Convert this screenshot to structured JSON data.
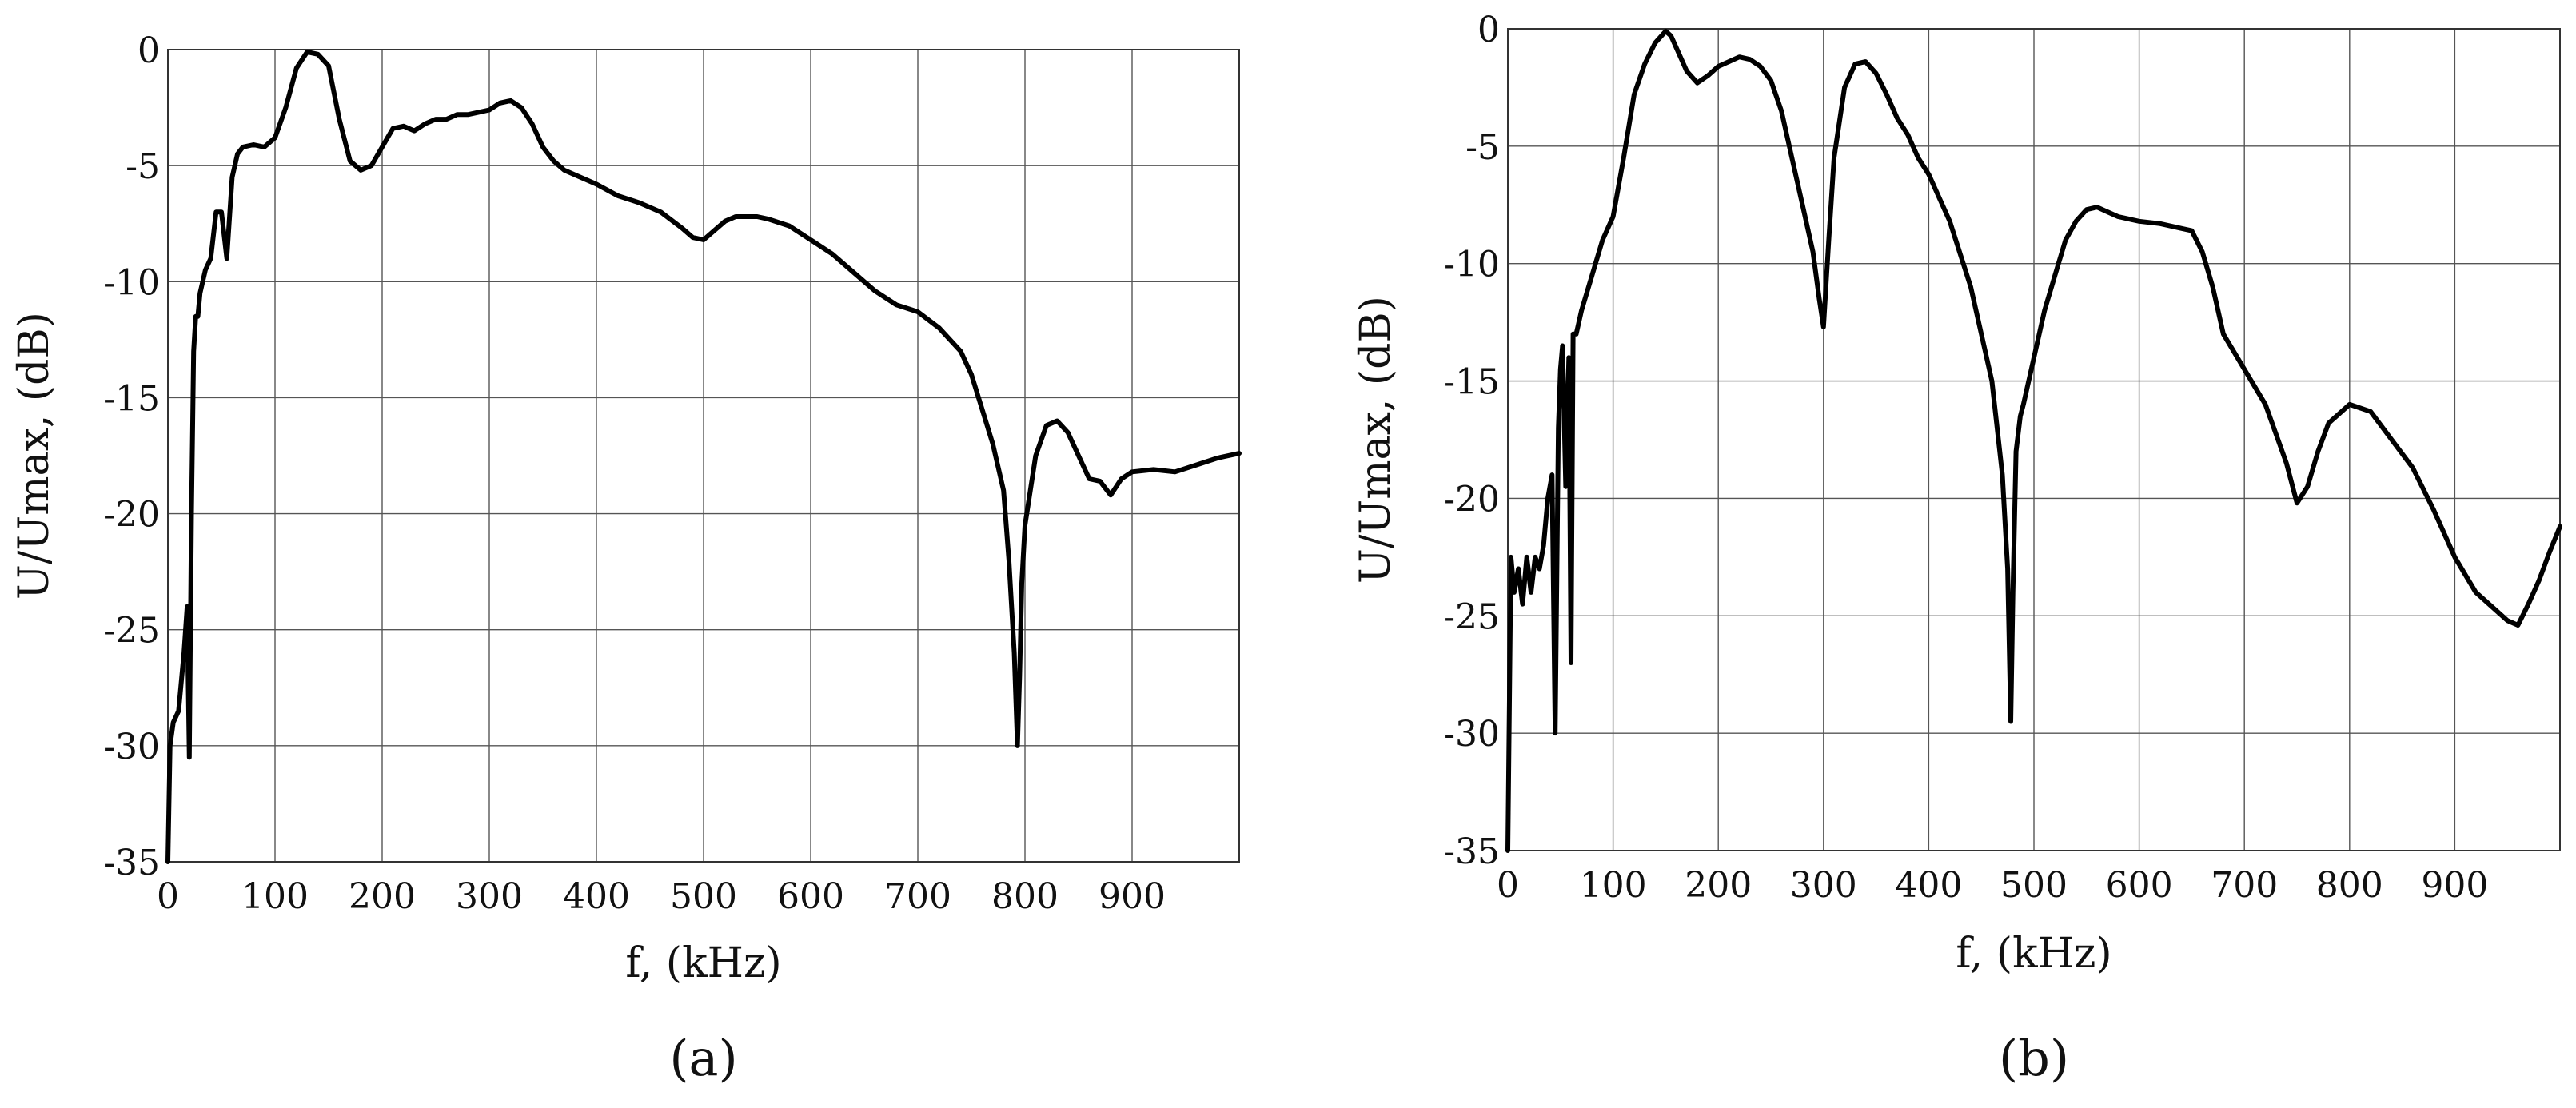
{
  "chart_data": [
    {
      "type": "line",
      "panel_label": "(a)",
      "xlabel": "f, (kHz)",
      "ylabel": "U/Umax, (dB)",
      "xlim": [
        0,
        1000
      ],
      "ylim": [
        -35,
        0
      ],
      "xticks": [
        0,
        100,
        200,
        300,
        400,
        500,
        600,
        700,
        800,
        900
      ],
      "yticks": [
        0,
        -5,
        -10,
        -15,
        -20,
        -25,
        -30,
        -35
      ],
      "tick_labels_x": [
        "0",
        "100",
        "200",
        "300",
        "400",
        "500",
        "600",
        "700",
        "800",
        "900"
      ],
      "tick_labels_y": [
        "0",
        "-5",
        "-10",
        "-15",
        "-20",
        "-25",
        "-30",
        "-35"
      ],
      "grid": true,
      "series": [
        {
          "x": [
            0,
            2,
            5,
            10,
            15,
            18,
            20,
            22,
            24,
            26,
            28,
            30,
            35,
            40,
            45,
            50,
            55,
            60,
            65,
            70,
            80,
            90,
            100,
            110,
            120,
            130,
            140,
            150,
            160,
            170,
            180,
            190,
            200,
            210,
            220,
            230,
            240,
            250,
            260,
            270,
            280,
            290,
            300,
            310,
            320,
            330,
            340,
            350,
            360,
            370,
            380,
            400,
            420,
            440,
            460,
            480,
            490,
            500,
            510,
            520,
            530,
            540,
            550,
            560,
            580,
            600,
            620,
            640,
            660,
            680,
            700,
            720,
            740,
            750,
            760,
            770,
            780,
            785,
            790,
            793,
            795,
            797,
            800,
            805,
            810,
            820,
            830,
            840,
            850,
            860,
            870,
            880,
            890,
            900,
            920,
            940,
            960,
            980,
            1000
          ],
          "y": [
            -35,
            -30,
            -29,
            -28.5,
            -26,
            -24,
            -30.5,
            -20,
            -13,
            -11.5,
            -11.5,
            -10.5,
            -9.5,
            -9,
            -7,
            -7,
            -9,
            -5.5,
            -4.5,
            -4.2,
            -4.1,
            -4.2,
            -3.8,
            -2.5,
            -0.8,
            -0.1,
            -0.2,
            -0.7,
            -3,
            -4.8,
            -5.2,
            -5,
            -4.2,
            -3.4,
            -3.3,
            -3.5,
            -3.2,
            -3,
            -3,
            -2.8,
            -2.8,
            -2.7,
            -2.6,
            -2.3,
            -2.2,
            -2.5,
            -3.2,
            -4.2,
            -4.8,
            -5.2,
            -5.4,
            -5.8,
            -6.3,
            -6.6,
            -7,
            -7.7,
            -8.1,
            -8.2,
            -7.8,
            -7.4,
            -7.2,
            -7.2,
            -7.2,
            -7.3,
            -7.6,
            -8.2,
            -8.8,
            -9.6,
            -10.4,
            -11,
            -11.3,
            -12,
            -13,
            -14,
            -15.5,
            -17,
            -19,
            -22,
            -26,
            -30,
            -27,
            -23,
            -20.5,
            -19,
            -17.5,
            -16.2,
            -16,
            -16.5,
            -17.5,
            -18.5,
            -18.6,
            -19.2,
            -18.5,
            -18.2,
            -18.1,
            -18.2,
            -17.9,
            -17.6,
            -17.4
          ]
        }
      ]
    },
    {
      "type": "line",
      "panel_label": "(b)",
      "xlabel": "f, (kHz)",
      "ylabel": "U/Umax, (dB)",
      "xlim": [
        0,
        1000
      ],
      "ylim": [
        -35,
        0
      ],
      "xticks": [
        0,
        100,
        200,
        300,
        400,
        500,
        600,
        700,
        800,
        900
      ],
      "yticks": [
        0,
        -5,
        -10,
        -15,
        -20,
        -25,
        -30,
        -35
      ],
      "tick_labels_x": [
        "0",
        "100",
        "200",
        "300",
        "400",
        "500",
        "600",
        "700",
        "800",
        "900"
      ],
      "tick_labels_y": [
        "0",
        "-5",
        "-10",
        "-15",
        "-20",
        "-25",
        "-30",
        "-35"
      ],
      "grid": true,
      "series": [
        {
          "x": [
            0,
            3,
            6,
            10,
            14,
            18,
            22,
            26,
            30,
            34,
            38,
            42,
            45,
            48,
            50,
            52,
            55,
            58,
            60,
            62,
            65,
            70,
            80,
            90,
            100,
            110,
            120,
            130,
            140,
            150,
            155,
            160,
            170,
            180,
            190,
            200,
            210,
            220,
            230,
            240,
            250,
            260,
            270,
            280,
            290,
            296,
            300,
            305,
            310,
            320,
            330,
            340,
            350,
            360,
            370,
            380,
            390,
            400,
            420,
            440,
            460,
            470,
            475,
            478,
            480,
            483,
            487,
            490,
            500,
            510,
            520,
            530,
            540,
            550,
            560,
            570,
            580,
            600,
            620,
            640,
            650,
            660,
            670,
            680,
            700,
            720,
            740,
            750,
            760,
            770,
            780,
            800,
            820,
            840,
            860,
            880,
            900,
            920,
            940,
            950,
            960,
            970,
            980,
            990,
            1000
          ],
          "y": [
            -35,
            -22.5,
            -24,
            -23,
            -24.5,
            -22.5,
            -24,
            -22.5,
            -23,
            -22,
            -20,
            -19,
            -30,
            -17,
            -14.5,
            -13.5,
            -19.5,
            -14,
            -27,
            -13,
            -13,
            -12,
            -10.5,
            -9,
            -8,
            -5.5,
            -2.8,
            -1.5,
            -0.6,
            -0.1,
            -0.3,
            -0.8,
            -1.8,
            -2.3,
            -2,
            -1.6,
            -1.4,
            -1.2,
            -1.3,
            -1.6,
            -2.2,
            -3.5,
            -5.5,
            -7.5,
            -9.5,
            -11.5,
            -12.7,
            -9,
            -5.5,
            -2.5,
            -1.5,
            -1.4,
            -1.9,
            -2.8,
            -3.8,
            -4.5,
            -5.5,
            -6.2,
            -8.2,
            -11,
            -15,
            -19,
            -23,
            -29.5,
            -24,
            -18,
            -16.5,
            -16,
            -14,
            -12,
            -10.5,
            -9,
            -8.2,
            -7.7,
            -7.6,
            -7.8,
            -8,
            -8.2,
            -8.3,
            -8.5,
            -8.6,
            -9.5,
            -11,
            -13,
            -14.5,
            -16,
            -18.5,
            -20.2,
            -19.5,
            -18,
            -16.8,
            -16,
            -16.3,
            -17.5,
            -18.7,
            -20.5,
            -22.5,
            -24,
            -24.8,
            -25.2,
            -25.4,
            -24.5,
            -23.5,
            -22.3,
            -21.2
          ]
        }
      ]
    }
  ]
}
